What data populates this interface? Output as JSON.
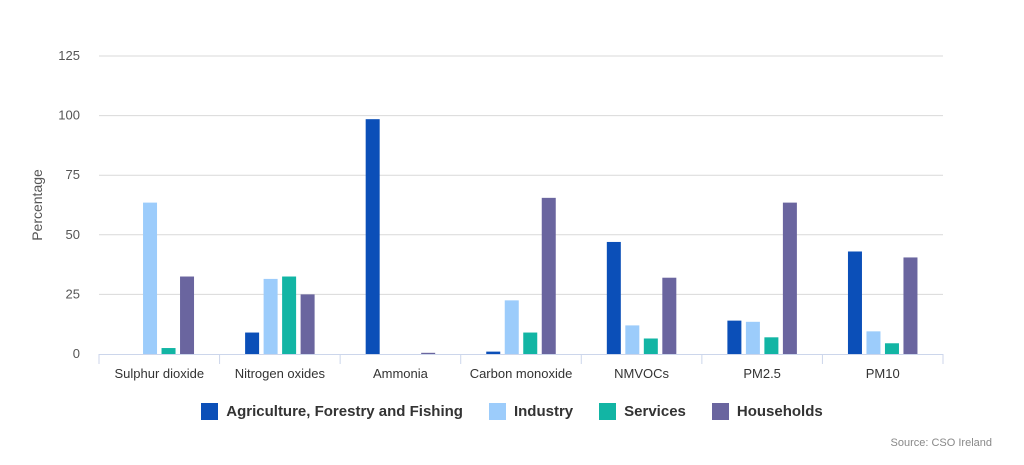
{
  "chart_data": {
    "type": "bar",
    "ylabel": "Percentage",
    "ylim": [
      0,
      125
    ],
    "yticks": [
      0,
      25,
      50,
      75,
      100,
      125
    ],
    "grid": true,
    "legend_position": "bottom",
    "categories": [
      "Sulphur dioxide",
      "Nitrogen oxides",
      "Ammonia",
      "Carbon monoxide",
      "NMVOCs",
      "PM2.5",
      "PM10"
    ],
    "series": [
      {
        "name": "Agriculture, Forestry and Fishing",
        "color": "#0b4fb8",
        "values": [
          0,
          9,
          98.5,
          1,
          47,
          14,
          43
        ]
      },
      {
        "name": "Industry",
        "color": "#9cccfb",
        "values": [
          63.5,
          31.5,
          0,
          22.5,
          12,
          13.5,
          9.5
        ]
      },
      {
        "name": "Services",
        "color": "#12b5a4",
        "values": [
          2.5,
          32.5,
          0,
          9,
          6.5,
          7,
          4.5
        ]
      },
      {
        "name": "Households",
        "color": "#6a659f",
        "values": [
          32.5,
          25,
          0.5,
          65.5,
          32,
          63.5,
          40.5
        ]
      }
    ]
  },
  "source": "Source: CSO Ireland"
}
